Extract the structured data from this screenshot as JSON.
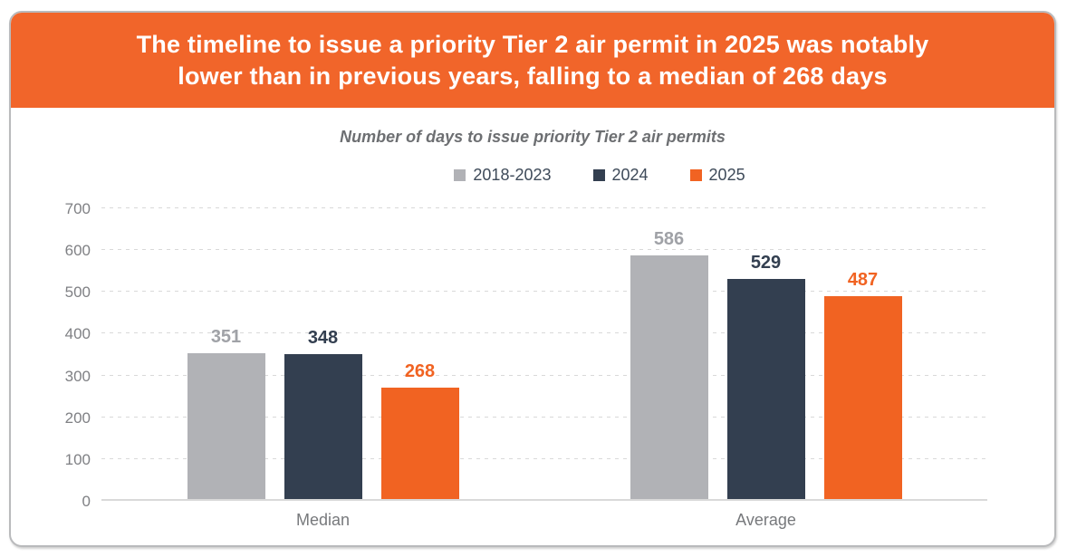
{
  "header": {
    "title_line1": "The timeline to issue a priority Tier 2 air permit in 2025 was notably",
    "title_line2": "lower than in previous years, falling to a median of 268 days",
    "background_color": "#f1652a",
    "text_color": "#ffffff"
  },
  "chart_data": {
    "type": "bar",
    "title": "Number of days to issue priority Tier 2 air permits",
    "categories": [
      "Median",
      "Average"
    ],
    "series": [
      {
        "name": "2018-2023",
        "color": "#b1b2b6",
        "label_color": "#a0a2a7",
        "values": [
          351,
          586
        ]
      },
      {
        "name": "2024",
        "color": "#333f50",
        "label_color": "#333f50",
        "values": [
          348,
          529
        ]
      },
      {
        "name": "2025",
        "color": "#f16322",
        "label_color": "#f16322",
        "values": [
          268,
          487
        ]
      }
    ],
    "ylim": [
      0,
      700
    ],
    "yticks": [
      0,
      100,
      200,
      300,
      400,
      500,
      600,
      700
    ],
    "grid": "horizontal-dashed",
    "gridline_color": "#d9d9d9",
    "axis_text_color": "#7f8084",
    "legend_position": "top",
    "data_labels": true
  }
}
